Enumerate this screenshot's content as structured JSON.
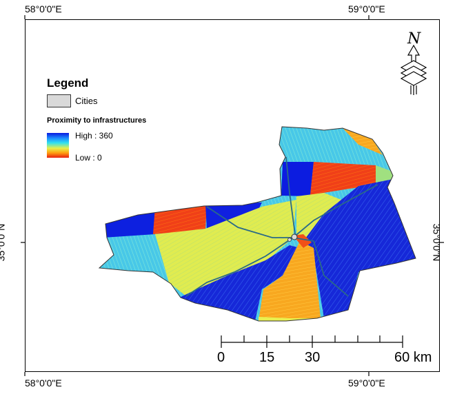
{
  "coordinates": {
    "top_left": "58°0'0\"E",
    "top_right": "59°0'0\"E",
    "bottom_left": "58°0'0\"E",
    "bottom_right": "59°0'0\"E",
    "left_lat": "35°0'0\"N",
    "right_lat": "35°0'0\"N"
  },
  "legend": {
    "title": "Legend",
    "cities_label": "Cities",
    "layer_title": "Proximity to infrastructures",
    "high_label": "High : 360",
    "low_label": "Low : 0"
  },
  "north_arrow": {
    "letter": "N"
  },
  "scale_bar": {
    "labels": [
      "0",
      "15",
      "30",
      "60 km"
    ]
  },
  "colors": {
    "high": "#0a1adf",
    "cyan": "#30e0f0",
    "yellow": "#e8f04a",
    "orange": "#ffa010",
    "low": "#e82010"
  }
}
